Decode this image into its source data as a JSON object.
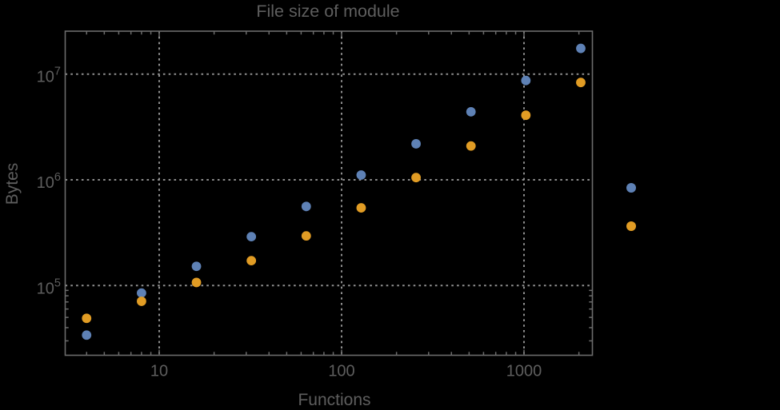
{
  "title": "File size of module",
  "axes": {
    "xlabel": "Functions",
    "ylabel": "Bytes",
    "x_tick_labels": [
      "10",
      "100",
      "1000"
    ],
    "x_tick_values": [
      10,
      100,
      1000
    ],
    "y_tick_base": "10",
    "y_tick_exponents": [
      "5",
      "6",
      "7"
    ],
    "y_tick_values": [
      100000,
      1000000,
      10000000
    ]
  },
  "chart_data": {
    "type": "scatter",
    "title": "File size of module",
    "xlabel": "Functions",
    "ylabel": "Bytes",
    "x_scale": "log",
    "y_scale": "log",
    "xlim": [
      3,
      2400
    ],
    "ylim": [
      22000,
      26000000
    ],
    "grid": "dotted-at-decades",
    "x": [
      4,
      8,
      16,
      32,
      64,
      128,
      256,
      512,
      1024,
      2048
    ],
    "series": [
      {
        "name": "blue-series",
        "color": "#5E81B5",
        "values": [
          34000,
          85000,
          152000,
          290000,
          560000,
          1110000,
          2190000,
          4400000,
          8700000,
          17500000
        ]
      },
      {
        "name": "orange-series",
        "color": "#E19C24",
        "values": [
          49000,
          71000,
          107000,
          172000,
          295000,
          543000,
          1050000,
          2090000,
          4080000,
          8330000
        ]
      }
    ],
    "legend": {
      "position": "outside-right",
      "labels_visible": false,
      "marker_colors": [
        "#5E81B5",
        "#E19C24"
      ]
    }
  },
  "colors": {
    "background": "#000000",
    "frame": "#6c6c6c",
    "grid": "#8f8f8f",
    "text": "#5e5e5e",
    "series_blue": "#5E81B5",
    "series_orange": "#E19C24"
  }
}
